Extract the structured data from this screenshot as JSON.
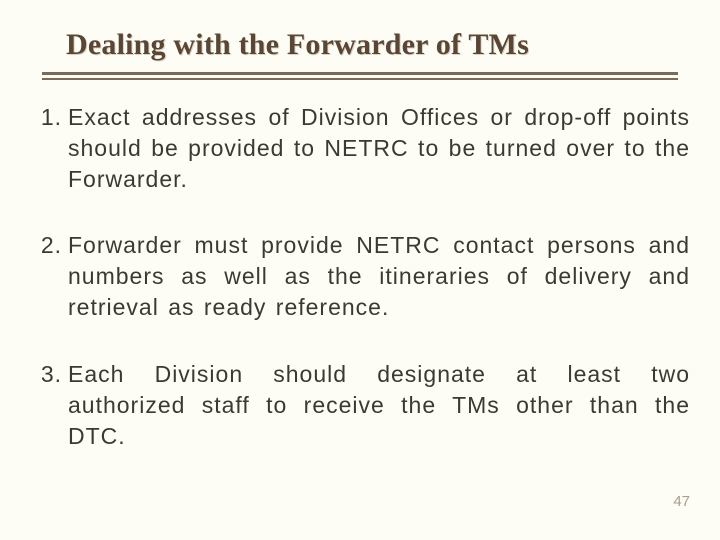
{
  "title": "Dealing with the Forwarder of TMs",
  "items": [
    {
      "n": "1.",
      "text": "Exact addresses of Division Offices or drop-off points should be provided to NETRC to be turned over to the Forwarder."
    },
    {
      "n": "2.",
      "text": "Forwarder must provide NETRC contact persons and numbers as well as the itineraries of delivery and retrieval as ready reference."
    },
    {
      "n": "3.",
      "text": "Each Division should designate at least two authorized staff to receive the TMs other than the DTC."
    }
  ],
  "page_number": "47",
  "colors": {
    "background": "#fdfdf5",
    "title_color": "#5b4636",
    "title_shadow": "#d9d4c5",
    "rule_color": "#7a6a58",
    "body_text": "#3a3a32",
    "page_num_color": "#a79f8f"
  },
  "typography": {
    "title_fontsize_pt": 30,
    "body_fontsize_pt": 23,
    "page_num_fontsize_pt": 15,
    "title_font": "Georgia serif bold",
    "body_font": "Verdana sans-serif",
    "body_alignment": "justify"
  }
}
